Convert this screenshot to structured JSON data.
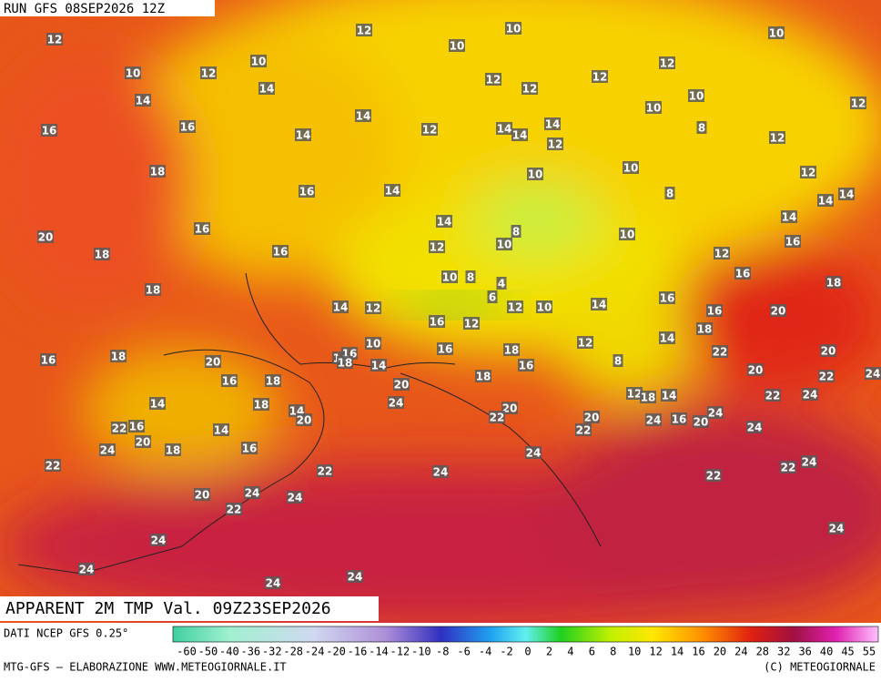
{
  "header": {
    "run": "RUN GFS 08SEP2026 12Z"
  },
  "title": "APPARENT 2M TMP Val. 09Z23SEP2026",
  "source": "DATI NCEP GFS 0.25°",
  "colorbar": {
    "labels": [
      -60,
      -50,
      -40,
      -36,
      -32,
      -28,
      -24,
      -20,
      -16,
      -14,
      -12,
      -10,
      -8,
      -6,
      -4,
      -2,
      0,
      2,
      4,
      6,
      8,
      10,
      12,
      14,
      16,
      20,
      24,
      28,
      32,
      36,
      40,
      45,
      55
    ]
  },
  "footer": {
    "left": "MTG-GFS — ELABORAZIONE WWW.METEOGIORNALE.IT",
    "right": "(C) METEOGIORNALE"
  },
  "map_labels": [
    12,
    12,
    10,
    10,
    10,
    10,
    12,
    10,
    14,
    12,
    12,
    12,
    12,
    10,
    14,
    10,
    12,
    16,
    16,
    14,
    14,
    12,
    14,
    14,
    14,
    12,
    8,
    12,
    18,
    10,
    10,
    12,
    16,
    14,
    8,
    14,
    14,
    16,
    14,
    14,
    20,
    8,
    10,
    10,
    12,
    16,
    18,
    16,
    12,
    16,
    10,
    8,
    18,
    18,
    14,
    12,
    4,
    6,
    14,
    16,
    12,
    10,
    16,
    20,
    16,
    12,
    16,
    18,
    20,
    10,
    14,
    16,
    18,
    14,
    16,
    18,
    12,
    14,
    18,
    22,
    20,
    16,
    8,
    16,
    18,
    18,
    20,
    20,
    22,
    24,
    14,
    18,
    14,
    24,
    12,
    18,
    14,
    22,
    24,
    20,
    20,
    22,
    16,
    20,
    14,
    22,
    20,
    24,
    16,
    20,
    24,
    24,
    22,
    18,
    16,
    24,
    24,
    22,
    22,
    24,
    24,
    22,
    22,
    20,
    24,
    24,
    22,
    24,
    24,
    24,
    24,
    24
  ]
}
